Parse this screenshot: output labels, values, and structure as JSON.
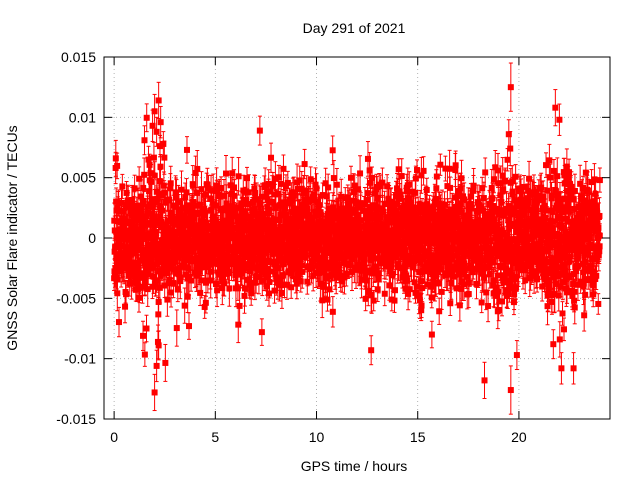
{
  "chart_data": {
    "type": "scatter",
    "title": "Day 291 of 2021",
    "xlabel": "GPS time / hours",
    "ylabel": "GNSS Solar Flare indicator / TECUs",
    "xlim": [
      -0.5,
      24.5
    ],
    "ylim": [
      -0.015,
      0.015
    ],
    "xticks": [
      0,
      5,
      10,
      15,
      20
    ],
    "xtick_labels": [
      "0",
      "5",
      "10",
      "15",
      "20"
    ],
    "yticks": [
      -0.015,
      -0.01,
      -0.005,
      0,
      0.005,
      0.01,
      0.015
    ],
    "ytick_labels": [
      "-0.015",
      "-0.01",
      "-0.005",
      "0",
      "0.005",
      "0.01",
      "0.015"
    ],
    "grid": true,
    "marker": "square",
    "error_bars": true,
    "color": "#ff0000",
    "x_range": [
      0,
      24
    ],
    "sampling_interval_hours": 0.0083,
    "typical_spread": 0.0022,
    "typical_error": 0.0012,
    "series": [
      {
        "name": "",
        "highlighted_points": [
          {
            "x": 1.5,
            "y": 0.0081,
            "err": 0.0012
          },
          {
            "x": 1.7,
            "y": 0.0065,
            "err": 0.0011
          },
          {
            "x": 1.9,
            "y": 0.0093,
            "err": 0.0013
          },
          {
            "x": 2.0,
            "y": 0.0105,
            "err": 0.0014
          },
          {
            "x": 2.1,
            "y": 0.0088,
            "err": 0.0012
          },
          {
            "x": 2.2,
            "y": 0.0114,
            "err": 0.0015
          },
          {
            "x": 2.3,
            "y": 0.0096,
            "err": 0.0013
          },
          {
            "x": 3.6,
            "y": 0.0073,
            "err": 0.0011
          },
          {
            "x": 7.2,
            "y": 0.0089,
            "err": 0.0012
          },
          {
            "x": 19.6,
            "y": 0.0125,
            "err": 0.002
          },
          {
            "x": 19.5,
            "y": 0.0086,
            "err": 0.0012
          },
          {
            "x": 21.8,
            "y": 0.0108,
            "err": 0.0015
          },
          {
            "x": 22.0,
            "y": 0.0098,
            "err": 0.0013
          },
          {
            "x": 24.0,
            "y": 0.0048,
            "err": 0.001
          },
          {
            "x": 2.0,
            "y": -0.0128,
            "err": 0.0015
          },
          {
            "x": 2.1,
            "y": -0.0106,
            "err": 0.0013
          },
          {
            "x": 2.2,
            "y": -0.0089,
            "err": 0.0012
          },
          {
            "x": 1.6,
            "y": -0.0075,
            "err": 0.0011
          },
          {
            "x": 3.7,
            "y": -0.0073,
            "err": 0.0011
          },
          {
            "x": 12.7,
            "y": -0.0093,
            "err": 0.0012
          },
          {
            "x": 18.3,
            "y": -0.0118,
            "err": 0.0015
          },
          {
            "x": 19.6,
            "y": -0.0126,
            "err": 0.002
          },
          {
            "x": 19.9,
            "y": -0.0097,
            "err": 0.0012
          },
          {
            "x": 21.7,
            "y": -0.0088,
            "err": 0.0012
          },
          {
            "x": 22.1,
            "y": -0.0108,
            "err": 0.0013
          },
          {
            "x": 22.7,
            "y": -0.0108,
            "err": 0.0013
          },
          {
            "x": 15.7,
            "y": -0.008,
            "err": 0.0011
          },
          {
            "x": 7.3,
            "y": -0.0078,
            "err": 0.0011
          }
        ]
      }
    ]
  }
}
